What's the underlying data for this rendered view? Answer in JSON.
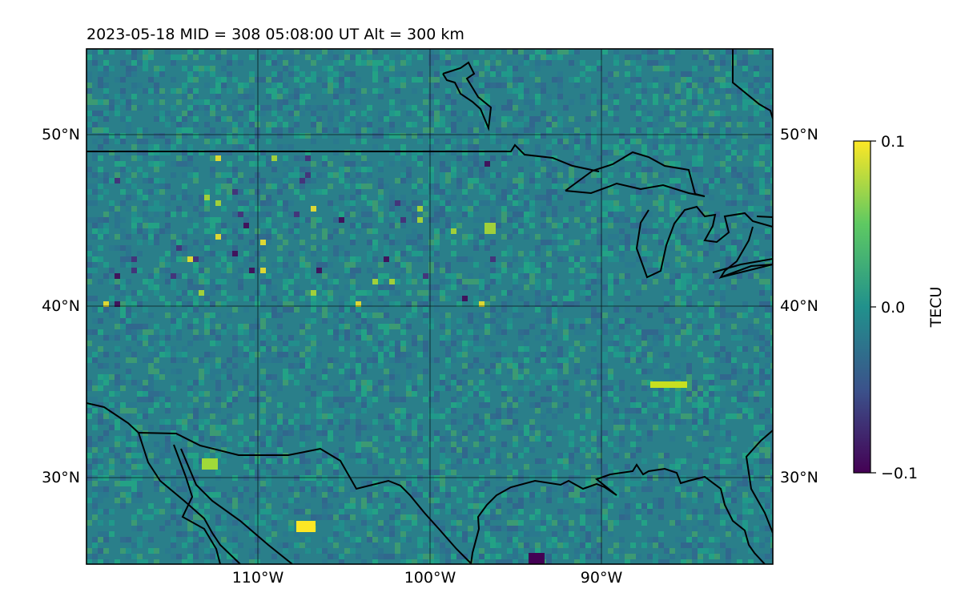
{
  "map": {
    "title": "2023-05-18  MID = 308    05:08:00  UT  Alt = 300 km",
    "lon_range": [
      -120,
      -80
    ],
    "lat_range": [
      25,
      55
    ],
    "lon_ticks": [
      -110,
      -100,
      -90
    ],
    "lat_ticks": [
      30,
      40,
      50
    ],
    "lon_tick_labels": [
      "110°W",
      "100°W",
      "90°W"
    ],
    "lat_tick_labels_left": [
      "30°N",
      "40°N",
      "50°N"
    ],
    "lat_tick_labels_right": [
      "30°N",
      "40°N",
      "50°N"
    ],
    "grid": true,
    "background_colormap": "viridis"
  },
  "colorbar": {
    "label": "TECU",
    "colormap": "viridis",
    "min": -0.1,
    "max": 0.1,
    "tick_labels": [
      "0.1",
      "0.0",
      "−0.1"
    ],
    "colors": [
      "#440154",
      "#3b528b",
      "#21918c",
      "#5ec962",
      "#fde725"
    ]
  }
}
